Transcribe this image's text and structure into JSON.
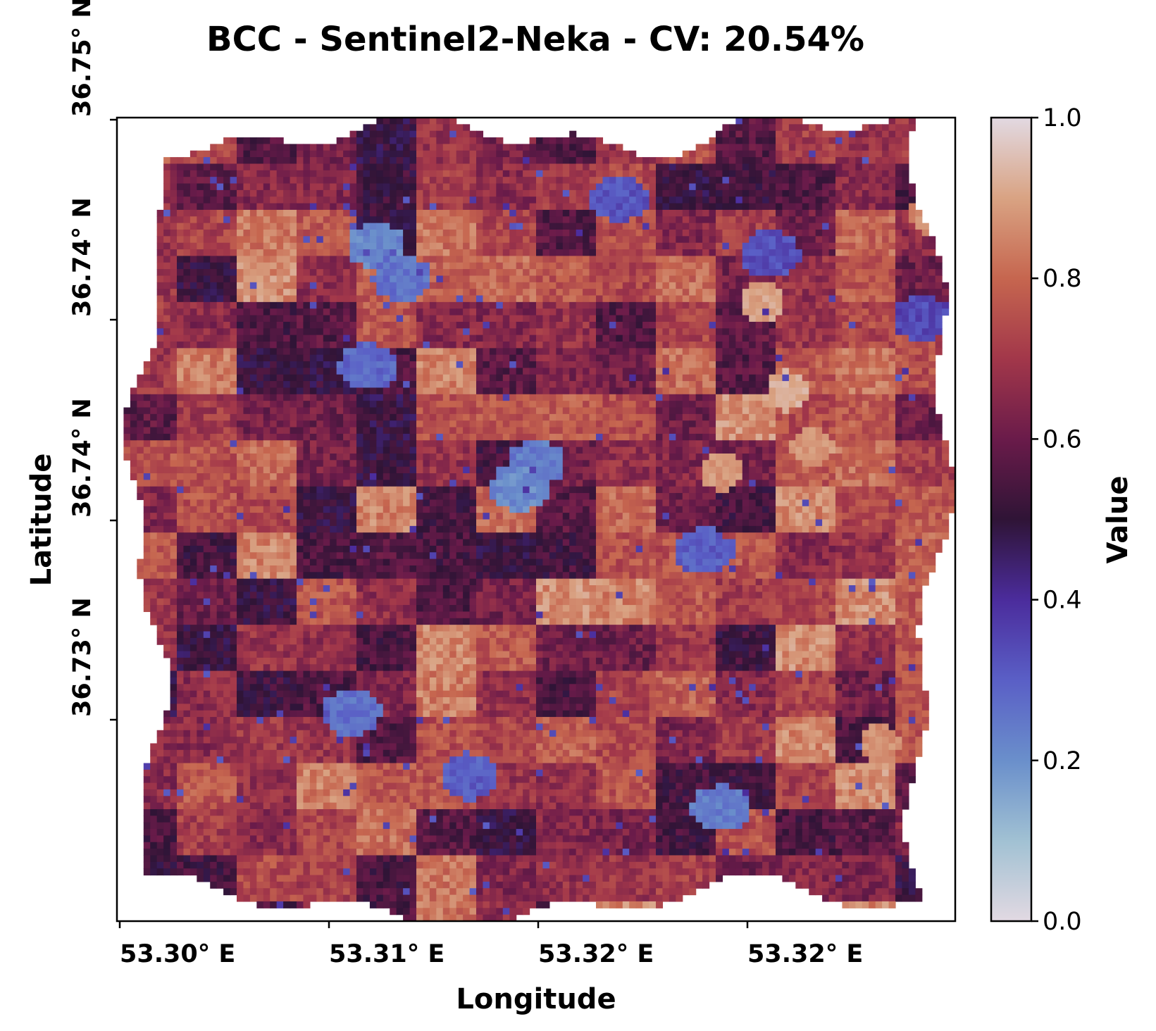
{
  "chart_data": {
    "type": "heatmap",
    "title": "BCC - Sentinel2-Neka - CV: 20.54%",
    "xlabel": "Longitude",
    "ylabel": "Latitude",
    "x_tick_labels": [
      "53.30° E",
      "53.31° E",
      "53.32° E",
      "53.32° E"
    ],
    "y_tick_labels": [
      "36.75° N",
      "36.74° N",
      "36.74° N",
      "36.73° N"
    ],
    "colorbar": {
      "label": "Value",
      "range": [
        0.0,
        1.0
      ],
      "tick_labels": [
        "0.0",
        "0.2",
        "0.4",
        "0.6",
        "0.8",
        "1.0"
      ],
      "tick_values": [
        0.0,
        0.2,
        0.4,
        0.6,
        0.8,
        1.0
      ],
      "colormap": "twilight_shifted (upper half)",
      "stops": [
        {
          "value": 0.0,
          "color": "#e2d9e2"
        },
        {
          "value": 0.1,
          "color": "#a1c1d3"
        },
        {
          "value": 0.2,
          "color": "#6a8fcb"
        },
        {
          "value": 0.3,
          "color": "#5a5fc6"
        },
        {
          "value": 0.4,
          "color": "#4b2c9c"
        },
        {
          "value": 0.5,
          "color": "#2f1436"
        },
        {
          "value": 0.6,
          "color": "#6a1b4a"
        },
        {
          "value": 0.7,
          "color": "#a2374a"
        },
        {
          "value": 0.8,
          "color": "#c6664f"
        },
        {
          "value": 0.9,
          "color": "#d9a383"
        },
        {
          "value": 1.0,
          "color": "#e2d9e2"
        }
      ]
    },
    "grid": false,
    "field": {
      "mean_value": 0.65,
      "low_patches": [
        {
          "x": 0.31,
          "y": 0.16,
          "value": 0.22
        },
        {
          "x": 0.34,
          "y": 0.2,
          "value": 0.26
        },
        {
          "x": 0.3,
          "y": 0.31,
          "value": 0.28
        },
        {
          "x": 0.5,
          "y": 0.43,
          "value": 0.24
        },
        {
          "x": 0.48,
          "y": 0.46,
          "value": 0.21
        },
        {
          "x": 0.7,
          "y": 0.54,
          "value": 0.3
        },
        {
          "x": 0.28,
          "y": 0.74,
          "value": 0.26
        },
        {
          "x": 0.72,
          "y": 0.86,
          "value": 0.24
        },
        {
          "x": 0.42,
          "y": 0.82,
          "value": 0.3
        },
        {
          "x": 0.6,
          "y": 0.1,
          "value": 0.32
        },
        {
          "x": 0.78,
          "y": 0.17,
          "value": 0.33
        },
        {
          "x": 0.96,
          "y": 0.25,
          "value": 0.35
        }
      ],
      "high_patches": [
        {
          "x": 0.77,
          "y": 0.23,
          "value": 0.9
        },
        {
          "x": 0.8,
          "y": 0.34,
          "value": 0.92
        },
        {
          "x": 0.72,
          "y": 0.44,
          "value": 0.88
        },
        {
          "x": 0.83,
          "y": 0.41,
          "value": 0.88
        },
        {
          "x": 0.97,
          "y": 0.12,
          "value": 0.86
        },
        {
          "x": 0.91,
          "y": 0.78,
          "value": 0.87
        }
      ]
    }
  }
}
